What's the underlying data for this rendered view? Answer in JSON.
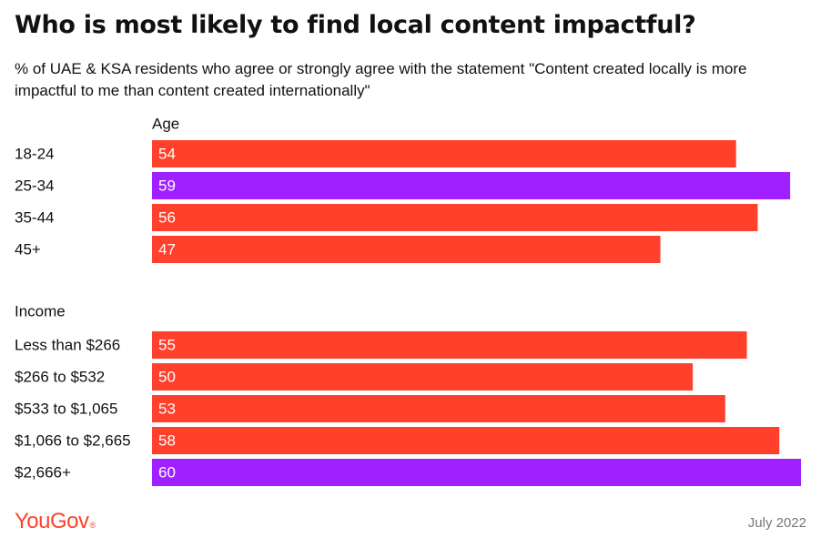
{
  "title": "Who is most likely to find local content impactful?",
  "subtitle": "% of UAE & KSA residents who agree or strongly agree with the statement \"Content created locally is more impactful to me than content created internationally\"",
  "footer": {
    "logo": "YouGov",
    "logo_mark": "®",
    "date": "July 2022"
  },
  "colors": {
    "default_bar": "#ff412c",
    "highlight_bar": "#a020ff",
    "bar_label": "#ffffff"
  },
  "chart_data": {
    "type": "bar",
    "orientation": "horizontal",
    "xlim": [
      0,
      60
    ],
    "grid": false,
    "groups": [
      {
        "name": "Age",
        "categories": [
          "18-24",
          "25-34",
          "35-44",
          "45+"
        ],
        "values": [
          54,
          59,
          56,
          47
        ],
        "highlight": [
          false,
          true,
          false,
          false
        ]
      },
      {
        "name": "Income",
        "categories": [
          "Less than $266",
          "$266 to $532",
          "$533 to $1,065",
          "$1,066 to $2,665",
          "$2,666+"
        ],
        "values": [
          55,
          50,
          53,
          58,
          60
        ],
        "highlight": [
          false,
          false,
          false,
          false,
          true
        ]
      }
    ]
  }
}
